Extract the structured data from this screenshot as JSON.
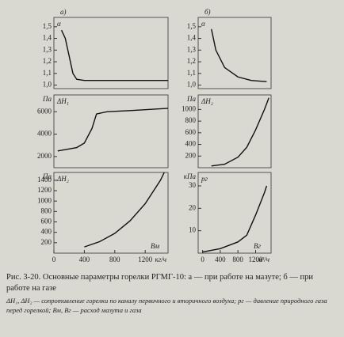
{
  "chart_data": [
    {
      "type": "line",
      "panel_label": "а)",
      "ylabel": "α",
      "x": [
        100,
        150,
        200,
        250,
        300,
        400,
        800,
        1500
      ],
      "values": [
        1.47,
        1.4,
        1.25,
        1.1,
        1.05,
        1.04,
        1.04,
        1.04
      ],
      "xlim": [
        0,
        1500
      ],
      "ylim": [
        0.97,
        1.58
      ],
      "yticks": [
        {
          "value": 1.0,
          "label": "1,0"
        },
        {
          "value": 1.1,
          "label": "1,1"
        },
        {
          "value": 1.2,
          "label": "1,2"
        },
        {
          "value": 1.3,
          "label": "1,3"
        },
        {
          "value": 1.4,
          "label": "1,4"
        },
        {
          "value": 1.5,
          "label": "1,5"
        }
      ]
    },
    {
      "type": "line",
      "unit": "Па",
      "ylabel": "ΔH₁",
      "x": [
        50,
        300,
        400,
        500,
        560,
        700,
        1000,
        1500
      ],
      "values": [
        2500,
        2800,
        3200,
        4500,
        5800,
        6000,
        6100,
        6300
      ],
      "xlim": [
        0,
        1500
      ],
      "ylim": [
        1000,
        7500
      ],
      "yticks": [
        2000,
        4000,
        6000
      ]
    },
    {
      "type": "line",
      "unit": "Па",
      "ylabel": "ΔH₂",
      "xlabel": "Вм",
      "xunit": "кг/ч",
      "x": [
        400,
        600,
        800,
        1000,
        1200,
        1400,
        1450
      ],
      "values": [
        120,
        220,
        380,
        620,
        950,
        1400,
        1550
      ],
      "xlim": [
        0,
        1500
      ],
      "ylim": [
        0,
        1550
      ],
      "yticks": [
        200,
        400,
        600,
        800,
        1000,
        1200,
        1400
      ],
      "xticks": [
        0,
        400,
        800,
        1200
      ]
    },
    {
      "type": "line",
      "panel_label": "б)",
      "ylabel": "α",
      "x": [
        200,
        300,
        500,
        800,
        1100,
        1450
      ],
      "values": [
        1.48,
        1.3,
        1.15,
        1.07,
        1.04,
        1.03
      ],
      "xlim": [
        -100,
        1550
      ],
      "ylim": [
        0.97,
        1.58
      ],
      "yticks": [
        {
          "value": 1.0,
          "label": "1,0"
        },
        {
          "value": 1.1,
          "label": "1,1"
        },
        {
          "value": 1.2,
          "label": "1,2"
        },
        {
          "value": 1.3,
          "label": "1,3"
        },
        {
          "value": 1.4,
          "label": "1,4"
        },
        {
          "value": 1.5,
          "label": "1,5"
        }
      ]
    },
    {
      "type": "line",
      "unit": "Па",
      "ylabel": "ΔH₂",
      "x": [
        200,
        500,
        800,
        1000,
        1200,
        1400,
        1500
      ],
      "values": [
        30,
        60,
        180,
        350,
        650,
        1000,
        1200
      ],
      "xlim": [
        -100,
        1550
      ],
      "ylim": [
        0,
        1250
      ],
      "yticks": [
        200,
        400,
        600,
        800,
        1000
      ]
    },
    {
      "type": "line",
      "unit": "кПа",
      "ylabel": "pг",
      "xlabel": "Вг",
      "xunit": "м³/ч",
      "x": [
        0,
        400,
        800,
        1000,
        1200,
        1400,
        1450
      ],
      "values": [
        0.5,
        2,
        5,
        8,
        17,
        27,
        30
      ],
      "xlim": [
        -100,
        1550
      ],
      "ylim": [
        0,
        36
      ],
      "yticks": [
        10,
        20,
        30
      ],
      "xticks": [
        0,
        400,
        800,
        1200
      ]
    }
  ],
  "caption": {
    "title": "Рис. 3-20. Основные параметры горелки РГМГ-10: а — при работе на мазуте; б — при работе на газе",
    "note": "ΔH₁, ΔH₂ — сопротивление горелки по каналу первичного и вторичного воздуха; pг — давление природного газа перед горелкой; Вм, Вг — расход мазута и газа"
  }
}
